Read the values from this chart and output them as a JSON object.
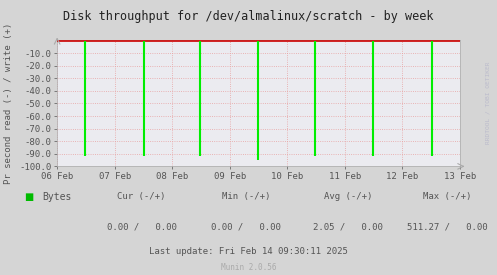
{
  "title": "Disk throughput for /dev/almalinux/scratch - by week",
  "ylabel": "Pr second read (-) / write (+)",
  "ylim": [
    -100,
    0
  ],
  "x_dates": [
    "06 Feb",
    "07 Feb",
    "08 Feb",
    "09 Feb",
    "10 Feb",
    "11 Feb",
    "12 Feb",
    "13 Feb"
  ],
  "bg_color": "#d5d5d5",
  "plot_bg_color": "#ebebf0",
  "grid_color": "#e8a0a0",
  "line_color": "#00ee00",
  "border_color": "#aaaaaa",
  "top_line_color": "#cc0000",
  "right_label_color": "#bbbbcc",
  "right_label": "RRDTOOL / TOBI OETIKER",
  "spike_xs_norm": [
    0.07,
    0.215,
    0.355,
    0.5,
    0.64,
    0.785,
    0.93
  ],
  "spike_heights": [
    -92,
    -92,
    -92,
    -95,
    -92,
    -92,
    -92
  ],
  "legend_label": "Bytes",
  "legend_color": "#00bb00",
  "cur_neg": "0.00",
  "cur_pos": "0.00",
  "min_neg": "0.00",
  "min_pos": "0.00",
  "avg_neg": "2.05",
  "avg_pos": "0.00",
  "max_neg": "511.27",
  "max_pos": "0.00",
  "last_update": "Last update: Fri Feb 14 09:30:11 2025",
  "munin_version": "Munin 2.0.56",
  "title_color": "#222222",
  "axis_color": "#555555",
  "tick_color": "#555555"
}
